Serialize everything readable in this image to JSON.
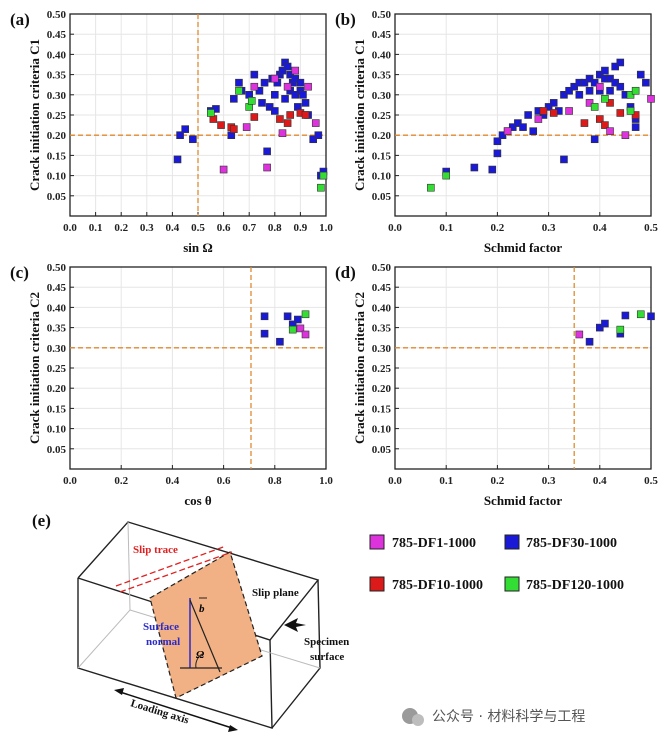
{
  "colors": {
    "785-DF1-1000": "#dd33dd",
    "785-DF30-1000": "#1a1ad6",
    "785-DF10-1000": "#dd1a1a",
    "785-DF120-1000": "#33dd33",
    "threshold": "#e08a2e",
    "slip_plane": "#f2b184",
    "slip_trace": "#e02020",
    "surface_normal": "#2b2bc8"
  },
  "legend": [
    {
      "name": "785-DF1-1000",
      "color": "#dd33dd"
    },
    {
      "name": "785-DF30-1000",
      "color": "#1a1ad6"
    },
    {
      "name": "785-DF10-1000",
      "color": "#dd1a1a"
    },
    {
      "name": "785-DF120-1000",
      "color": "#33dd33"
    }
  ],
  "chart_data": [
    {
      "panel_label": "(a)",
      "type": "scatter",
      "xlabel": "sin Ω",
      "ylabel": "Crack initiation criteria C1",
      "xlim": [
        0,
        1.0
      ],
      "ylim": [
        0,
        0.5
      ],
      "xticks": [
        "0.0",
        "0.1",
        "0.2",
        "0.3",
        "0.4",
        "0.5",
        "0.6",
        "0.7",
        "0.8",
        "0.9",
        "1.0"
      ],
      "yticks": [
        "0.05",
        "0.10",
        "0.15",
        "0.20",
        "0.25",
        "0.30",
        "0.35",
        "0.40",
        "0.45",
        "0.50"
      ],
      "threshold_x": 0.5,
      "threshold_y": 0.2,
      "series": [
        {
          "name": "785-DF1-1000",
          "points": [
            [
              0.6,
              0.115
            ],
            [
              0.77,
              0.12
            ],
            [
              0.83,
              0.205
            ],
            [
              0.85,
              0.32
            ],
            [
              0.88,
              0.36
            ],
            [
              0.93,
              0.32
            ],
            [
              0.96,
              0.23
            ],
            [
              0.72,
              0.32
            ],
            [
              0.69,
              0.22
            ],
            [
              0.8,
              0.34
            ]
          ]
        },
        {
          "name": "785-DF30-1000",
          "points": [
            [
              0.42,
              0.14
            ],
            [
              0.43,
              0.2
            ],
            [
              0.45,
              0.215
            ],
            [
              0.48,
              0.19
            ],
            [
              0.55,
              0.26
            ],
            [
              0.57,
              0.265
            ],
            [
              0.63,
              0.2
            ],
            [
              0.64,
              0.29
            ],
            [
              0.66,
              0.33
            ],
            [
              0.67,
              0.31
            ],
            [
              0.7,
              0.3
            ],
            [
              0.72,
              0.35
            ],
            [
              0.74,
              0.31
            ],
            [
              0.75,
              0.28
            ],
            [
              0.76,
              0.33
            ],
            [
              0.77,
              0.16
            ],
            [
              0.78,
              0.27
            ],
            [
              0.79,
              0.34
            ],
            [
              0.8,
              0.3
            ],
            [
              0.81,
              0.33
            ],
            [
              0.82,
              0.35
            ],
            [
              0.83,
              0.36
            ],
            [
              0.84,
              0.38
            ],
            [
              0.85,
              0.37
            ],
            [
              0.86,
              0.35
            ],
            [
              0.86,
              0.31
            ],
            [
              0.87,
              0.33
            ],
            [
              0.88,
              0.34
            ],
            [
              0.88,
              0.3
            ],
            [
              0.89,
              0.27
            ],
            [
              0.9,
              0.33
            ],
            [
              0.9,
              0.31
            ],
            [
              0.91,
              0.3
            ],
            [
              0.92,
              0.28
            ],
            [
              0.93,
              0.25
            ],
            [
              0.95,
              0.19
            ],
            [
              0.97,
              0.2
            ],
            [
              0.98,
              0.1
            ],
            [
              0.99,
              0.11
            ],
            [
              0.8,
              0.26
            ],
            [
              0.84,
              0.29
            ]
          ]
        },
        {
          "name": "785-DF10-1000",
          "points": [
            [
              0.56,
              0.24
            ],
            [
              0.59,
              0.225
            ],
            [
              0.63,
              0.22
            ],
            [
              0.64,
              0.215
            ],
            [
              0.72,
              0.245
            ],
            [
              0.82,
              0.24
            ],
            [
              0.86,
              0.25
            ],
            [
              0.9,
              0.255
            ],
            [
              0.92,
              0.25
            ],
            [
              0.85,
              0.23
            ]
          ]
        },
        {
          "name": "785-DF120-1000",
          "points": [
            [
              0.55,
              0.255
            ],
            [
              0.66,
              0.31
            ],
            [
              0.7,
              0.27
            ],
            [
              0.71,
              0.285
            ],
            [
              0.98,
              0.07
            ],
            [
              0.99,
              0.1
            ]
          ]
        }
      ]
    },
    {
      "panel_label": "(b)",
      "type": "scatter",
      "xlabel": "Schmid factor",
      "ylabel": "Crack initiation criteria C1",
      "xlim": [
        0,
        0.5
      ],
      "ylim": [
        0,
        0.5
      ],
      "xticks": [
        "0.0",
        "0.1",
        "0.2",
        "0.3",
        "0.4",
        "0.5"
      ],
      "yticks": [
        "0.05",
        "0.10",
        "0.15",
        "0.20",
        "0.25",
        "0.30",
        "0.35",
        "0.40",
        "0.45",
        "0.50"
      ],
      "threshold_y": 0.2,
      "series": [
        {
          "name": "785-DF1-1000",
          "points": [
            [
              0.22,
              0.21
            ],
            [
              0.28,
              0.24
            ],
            [
              0.34,
              0.26
            ],
            [
              0.38,
              0.28
            ],
            [
              0.42,
              0.21
            ],
            [
              0.45,
              0.2
            ],
            [
              0.5,
              0.29
            ],
            [
              0.4,
              0.32
            ]
          ]
        },
        {
          "name": "785-DF30-1000",
          "points": [
            [
              0.1,
              0.11
            ],
            [
              0.155,
              0.12
            ],
            [
              0.19,
              0.115
            ],
            [
              0.2,
              0.185
            ],
            [
              0.2,
              0.155
            ],
            [
              0.21,
              0.2
            ],
            [
              0.22,
              0.21
            ],
            [
              0.23,
              0.22
            ],
            [
              0.24,
              0.23
            ],
            [
              0.25,
              0.22
            ],
            [
              0.26,
              0.25
            ],
            [
              0.27,
              0.21
            ],
            [
              0.28,
              0.26
            ],
            [
              0.29,
              0.25
            ],
            [
              0.3,
              0.27
            ],
            [
              0.31,
              0.28
            ],
            [
              0.32,
              0.26
            ],
            [
              0.33,
              0.3
            ],
            [
              0.33,
              0.14
            ],
            [
              0.34,
              0.31
            ],
            [
              0.35,
              0.32
            ],
            [
              0.36,
              0.3
            ],
            [
              0.36,
              0.33
            ],
            [
              0.37,
              0.33
            ],
            [
              0.38,
              0.34
            ],
            [
              0.38,
              0.31
            ],
            [
              0.39,
              0.33
            ],
            [
              0.39,
              0.19
            ],
            [
              0.4,
              0.35
            ],
            [
              0.4,
              0.31
            ],
            [
              0.41,
              0.34
            ],
            [
              0.41,
              0.36
            ],
            [
              0.42,
              0.34
            ],
            [
              0.42,
              0.31
            ],
            [
              0.43,
              0.37
            ],
            [
              0.43,
              0.33
            ],
            [
              0.44,
              0.38
            ],
            [
              0.44,
              0.32
            ],
            [
              0.45,
              0.3
            ],
            [
              0.46,
              0.27
            ],
            [
              0.47,
              0.22
            ],
            [
              0.48,
              0.35
            ],
            [
              0.49,
              0.33
            ],
            [
              0.47,
              0.24
            ]
          ]
        },
        {
          "name": "785-DF10-1000",
          "points": [
            [
              0.29,
              0.26
            ],
            [
              0.31,
              0.255
            ],
            [
              0.37,
              0.23
            ],
            [
              0.4,
              0.24
            ],
            [
              0.41,
              0.225
            ],
            [
              0.44,
              0.255
            ],
            [
              0.47,
              0.25
            ],
            [
              0.42,
              0.28
            ]
          ]
        },
        {
          "name": "785-DF120-1000",
          "points": [
            [
              0.07,
              0.07
            ],
            [
              0.1,
              0.1
            ],
            [
              0.39,
              0.27
            ],
            [
              0.41,
              0.29
            ],
            [
              0.46,
              0.26
            ],
            [
              0.46,
              0.3
            ],
            [
              0.47,
              0.31
            ]
          ]
        }
      ]
    },
    {
      "panel_label": "(c)",
      "type": "scatter",
      "xlabel": "cos θ",
      "ylabel": "Crack initiation criteria C2",
      "xlim": [
        0,
        1.0
      ],
      "ylim": [
        0,
        0.5
      ],
      "xticks": [
        "0.0",
        "0.2",
        "0.4",
        "0.6",
        "0.8",
        "1.0"
      ],
      "yticks": [
        "0.05",
        "0.10",
        "0.15",
        "0.20",
        "0.25",
        "0.30",
        "0.35",
        "0.40",
        "0.45",
        "0.50"
      ],
      "threshold_x": 0.707,
      "threshold_y": 0.3,
      "series": [
        {
          "name": "785-DF1-1000",
          "points": [
            [
              0.9,
              0.348
            ],
            [
              0.92,
              0.333
            ]
          ]
        },
        {
          "name": "785-DF30-1000",
          "points": [
            [
              0.76,
              0.378
            ],
            [
              0.76,
              0.335
            ],
            [
              0.82,
              0.315
            ],
            [
              0.85,
              0.378
            ],
            [
              0.87,
              0.358
            ],
            [
              0.89,
              0.37
            ]
          ]
        },
        {
          "name": "785-DF10-1000",
          "points": []
        },
        {
          "name": "785-DF120-1000",
          "points": [
            [
              0.87,
              0.345
            ],
            [
              0.92,
              0.383
            ]
          ]
        }
      ]
    },
    {
      "panel_label": "(d)",
      "type": "scatter",
      "xlabel": "Schmid factor",
      "ylabel": "Crack initiation criteria C2",
      "xlim": [
        0,
        0.5
      ],
      "ylim": [
        0,
        0.5
      ],
      "xticks": [
        "0.0",
        "0.1",
        "0.2",
        "0.3",
        "0.4",
        "0.5"
      ],
      "yticks": [
        "0.05",
        "0.10",
        "0.15",
        "0.20",
        "0.25",
        "0.30",
        "0.35",
        "0.40",
        "0.45",
        "0.50"
      ],
      "threshold_x": 0.35,
      "threshold_y": 0.3,
      "series": [
        {
          "name": "785-DF1-1000",
          "points": [
            [
              0.36,
              0.333
            ]
          ]
        },
        {
          "name": "785-DF30-1000",
          "points": [
            [
              0.38,
              0.315
            ],
            [
              0.4,
              0.35
            ],
            [
              0.41,
              0.36
            ],
            [
              0.44,
              0.335
            ],
            [
              0.45,
              0.38
            ],
            [
              0.5,
              0.378
            ]
          ]
        },
        {
          "name": "785-DF10-1000",
          "points": []
        },
        {
          "name": "785-DF120-1000",
          "points": [
            [
              0.44,
              0.345
            ],
            [
              0.48,
              0.383
            ]
          ]
        }
      ]
    }
  ],
  "diagram": {
    "panel_label": "(e)",
    "labels": {
      "slip_trace": "Slip trace",
      "slip_plane": "Slip plane",
      "surface_normal_1": "Surface",
      "surface_normal_2": "normal",
      "specimen_surface_1": "Specimen",
      "specimen_surface_2": "surface",
      "loading_axis": "Loading axis",
      "b_vector": "b",
      "omega": "Ω"
    }
  },
  "watermark": "公众号 · 材料科学与工程"
}
